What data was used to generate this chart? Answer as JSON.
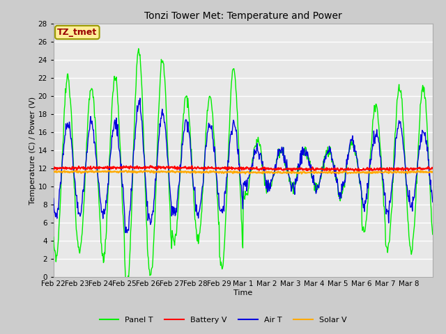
{
  "title": "Tonzi Tower Met: Temperature and Power",
  "xlabel": "Time",
  "ylabel": "Temperature (C) / Power (V)",
  "ylim": [
    0,
    28
  ],
  "yticks": [
    0,
    2,
    4,
    6,
    8,
    10,
    12,
    14,
    16,
    18,
    20,
    22,
    24,
    26,
    28
  ],
  "xtick_labels": [
    "Feb 22",
    "Feb 23",
    "Feb 24",
    "Feb 25",
    "Feb 26",
    "Feb 27",
    "Feb 28",
    "Feb 29",
    "Mar 1",
    "Mar 2",
    "Mar 3",
    "Mar 4",
    "Mar 5",
    "Mar 6",
    "Mar 7",
    "Mar 8"
  ],
  "annotation_text": "TZ_tmet",
  "annotation_color": "#990000",
  "annotation_bg": "#ffee99",
  "annotation_border": "#999900",
  "fig_bg_color": "#cccccc",
  "plot_bg_color": "#e8e8e8",
  "grid_color": "#ffffff",
  "legend_labels": [
    "Panel T",
    "Battery V",
    "Air T",
    "Solar V"
  ],
  "legend_colors": [
    "#00ee00",
    "#ff0000",
    "#0000dd",
    "#ffaa00"
  ],
  "line_colors": {
    "panel_t": "#00ee00",
    "battery_v": "#ff0000",
    "air_t": "#0000dd",
    "solar_v": "#ffaa00"
  },
  "battery_v_value": 12.0,
  "solar_v_value": 11.6,
  "title_fontsize": 10,
  "axis_label_fontsize": 8,
  "tick_fontsize": 7.5,
  "legend_fontsize": 8
}
